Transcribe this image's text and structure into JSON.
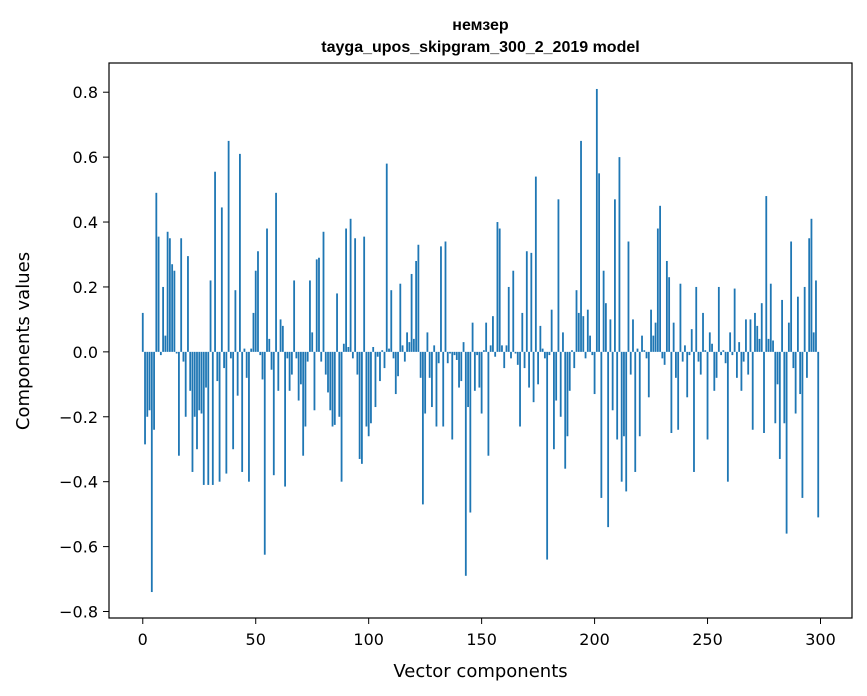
{
  "chart_data": {
    "type": "bar",
    "title": "немзер",
    "subtitle": "tayga_upos_skipgram_300_2_2019 model",
    "xlabel": "Vector components",
    "ylabel": "Components values",
    "xlim": [
      -14.95,
      313.95
    ],
    "ylim": [
      -0.82,
      0.89
    ],
    "xticks": [
      0,
      50,
      100,
      150,
      200,
      250,
      300
    ],
    "xtick_labels": [
      "0",
      "50",
      "100",
      "150",
      "200",
      "250",
      "300"
    ],
    "yticks": [
      -0.8,
      -0.6,
      -0.4,
      -0.2,
      0.0,
      0.2,
      0.4,
      0.6,
      0.8
    ],
    "ytick_labels": [
      "−0.8",
      "−0.6",
      "−0.4",
      "−0.2",
      "0.0",
      "0.2",
      "0.4",
      "0.6",
      "0.8"
    ],
    "grid": false,
    "color": "#1f77b4",
    "x": [
      0,
      1,
      2,
      3,
      4,
      5,
      6,
      7,
      8,
      9,
      10,
      11,
      12,
      13,
      14,
      15,
      16,
      17,
      18,
      19,
      20,
      21,
      22,
      23,
      24,
      25,
      26,
      27,
      28,
      29,
      30,
      31,
      32,
      33,
      34,
      35,
      36,
      37,
      38,
      39,
      40,
      41,
      42,
      43,
      44,
      45,
      46,
      47,
      48,
      49,
      50,
      51,
      52,
      53,
      54,
      55,
      56,
      57,
      58,
      59,
      60,
      61,
      62,
      63,
      64,
      65,
      66,
      67,
      68,
      69,
      70,
      71,
      72,
      73,
      74,
      75,
      76,
      77,
      78,
      79,
      80,
      81,
      82,
      83,
      84,
      85,
      86,
      87,
      88,
      89,
      90,
      91,
      92,
      93,
      94,
      95,
      96,
      97,
      98,
      99,
      100,
      101,
      102,
      103,
      104,
      105,
      106,
      107,
      108,
      109,
      110,
      111,
      112,
      113,
      114,
      115,
      116,
      117,
      118,
      119,
      120,
      121,
      122,
      123,
      124,
      125,
      126,
      127,
      128,
      129,
      130,
      131,
      132,
      133,
      134,
      135,
      136,
      137,
      138,
      139,
      140,
      141,
      142,
      143,
      144,
      145,
      146,
      147,
      148,
      149,
      150,
      151,
      152,
      153,
      154,
      155,
      156,
      157,
      158,
      159,
      160,
      161,
      162,
      163,
      164,
      165,
      166,
      167,
      168,
      169,
      170,
      171,
      172,
      173,
      174,
      175,
      176,
      177,
      178,
      179,
      180,
      181,
      182,
      183,
      184,
      185,
      186,
      187,
      188,
      189,
      190,
      191,
      192,
      193,
      194,
      195,
      196,
      197,
      198,
      199,
      200,
      201,
      202,
      203,
      204,
      205,
      206,
      207,
      208,
      209,
      210,
      211,
      212,
      213,
      214,
      215,
      216,
      217,
      218,
      219,
      220,
      221,
      222,
      223,
      224,
      225,
      226,
      227,
      228,
      229,
      230,
      231,
      232,
      233,
      234,
      235,
      236,
      237,
      238,
      239,
      240,
      241,
      242,
      243,
      244,
      245,
      246,
      247,
      248,
      249,
      250,
      251,
      252,
      253,
      254,
      255,
      256,
      257,
      258,
      259,
      260,
      261,
      262,
      263,
      264,
      265,
      266,
      267,
      268,
      269,
      270,
      271,
      272,
      273,
      274,
      275,
      276,
      277,
      278,
      279,
      280,
      281,
      282,
      283,
      284,
      285,
      286,
      287,
      288,
      289,
      290,
      291,
      292,
      293,
      294,
      295,
      296,
      297,
      298,
      299
    ],
    "values": [
      0.12,
      -0.285,
      -0.2,
      -0.18,
      -0.74,
      -0.24,
      0.49,
      0.355,
      -0.01,
      0.2,
      0.05,
      0.37,
      0.35,
      0.27,
      0.25,
      -0.005,
      -0.32,
      0.35,
      -0.03,
      -0.2,
      0.295,
      -0.12,
      -0.37,
      -0.2,
      -0.3,
      -0.18,
      -0.19,
      -0.41,
      -0.11,
      -0.41,
      0.22,
      -0.41,
      0.555,
      -0.09,
      -0.4,
      0.445,
      -0.05,
      -0.375,
      0.65,
      -0.02,
      -0.3,
      0.19,
      -0.135,
      0.61,
      -0.37,
      0.01,
      -0.08,
      -0.4,
      0.01,
      0.12,
      0.25,
      0.31,
      -0.01,
      -0.085,
      -0.625,
      0.38,
      0.04,
      -0.055,
      -0.38,
      0.49,
      -0.12,
      0.1,
      0.08,
      -0.415,
      -0.02,
      -0.12,
      -0.07,
      0.22,
      -0.02,
      -0.15,
      -0.1,
      -0.32,
      -0.23,
      -0.03,
      0.22,
      0.06,
      -0.18,
      0.285,
      0.29,
      -0.03,
      0.37,
      -0.07,
      -0.125,
      -0.18,
      -0.23,
      -0.225,
      0.18,
      -0.2,
      -0.4,
      0.025,
      0.38,
      0.015,
      0.41,
      -0.02,
      0.35,
      -0.07,
      -0.33,
      -0.345,
      0.355,
      -0.23,
      -0.26,
      -0.22,
      0.015,
      -0.17,
      -0.015,
      -0.09,
      0.005,
      -0.05,
      0.58,
      0.01,
      0.19,
      -0.02,
      -0.13,
      -0.075,
      0.21,
      0.02,
      -0.03,
      0.06,
      0.03,
      0.24,
      0.04,
      0.28,
      0.33,
      -0.08,
      -0.47,
      -0.19,
      0.06,
      -0.08,
      -0.17,
      0.02,
      -0.23,
      -0.035,
      0.325,
      -0.23,
      0.34,
      -0.035,
      -0.005,
      -0.27,
      -0.01,
      -0.025,
      -0.11,
      -0.09,
      0.03,
      -0.69,
      -0.17,
      -0.495,
      0.09,
      -0.12,
      -0.01,
      -0.11,
      -0.19,
      0.005,
      0.09,
      -0.32,
      0.02,
      0.11,
      -0.015,
      0.4,
      0.38,
      0.02,
      -0.05,
      0.02,
      0.2,
      -0.02,
      0.25,
      -0.005,
      -0.04,
      -0.23,
      0.12,
      -0.05,
      0.31,
      -0.11,
      0.305,
      -0.155,
      0.54,
      -0.1,
      0.08,
      0.01,
      -0.02,
      -0.64,
      -0.01,
      0.13,
      -0.3,
      -0.15,
      0.47,
      -0.2,
      0.06,
      -0.36,
      -0.26,
      -0.12,
      0.005,
      -0.05,
      0.19,
      0.12,
      0.65,
      0.11,
      -0.02,
      0.13,
      0.05,
      -0.01,
      -0.13,
      0.81,
      0.55,
      -0.45,
      0.25,
      0.15,
      -0.54,
      0.1,
      -0.18,
      0.47,
      -0.27,
      0.6,
      -0.4,
      -0.26,
      -0.43,
      0.34,
      -0.07,
      0.1,
      -0.37,
      0.01,
      -0.26,
      0.05,
      0.005,
      -0.02,
      -0.14,
      0.13,
      0.05,
      0.09,
      0.38,
      0.45,
      -0.02,
      -0.04,
      0.28,
      0.23,
      -0.25,
      0.09,
      -0.08,
      -0.24,
      0.21,
      -0.03,
      0.02,
      -0.14,
      -0.01,
      0.07,
      -0.37,
      0.2,
      -0.03,
      -0.07,
      0.12,
      0.005,
      -0.27,
      0.06,
      0.025,
      -0.12,
      -0.08,
      0.2,
      -0.01,
      0.005,
      -0.035,
      -0.4,
      0.06,
      -0.01,
      0.195,
      -0.08,
      0.03,
      -0.12,
      -0.03,
      0.1,
      -0.07,
      0.1,
      -0.24,
      0.12,
      0.08,
      0.04,
      0.15,
      -0.25,
      0.48,
      0.04,
      0.21,
      0.035,
      -0.22,
      -0.1,
      -0.33,
      0.16,
      -0.22,
      -0.56,
      0.09,
      0.34,
      -0.05,
      -0.19,
      0.17,
      -0.13,
      -0.45,
      0.2,
      -0.08,
      0.35,
      0.41,
      0.06,
      0.22,
      -0.51
    ]
  }
}
